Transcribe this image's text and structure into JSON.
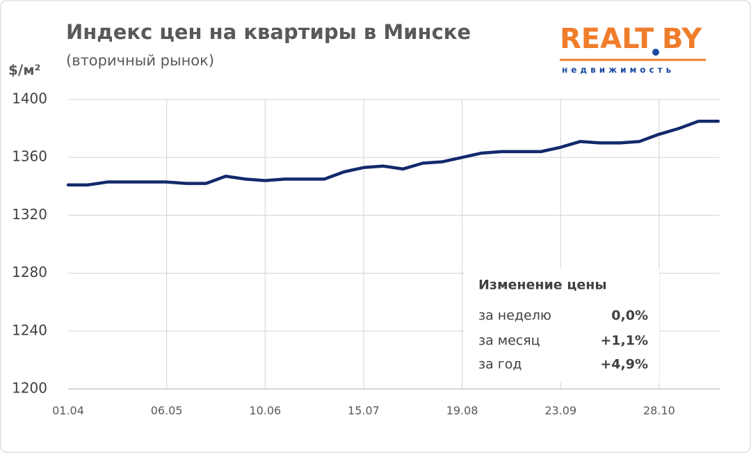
{
  "chart_data": {
    "type": "line",
    "title": "Индекс цен на квартиры в Минске",
    "subtitle": "(вторичный рынок)",
    "y_label": "$/м²",
    "logo": {
      "name_left": "REALT",
      "name_right": "BY",
      "tagline": "недвижимость"
    },
    "categories": [
      "01.04",
      null,
      null,
      null,
      null,
      "06.05",
      null,
      null,
      null,
      null,
      "10.06",
      null,
      null,
      null,
      null,
      "15.07",
      null,
      null,
      null,
      null,
      "19.08",
      null,
      null,
      null,
      null,
      "23.09",
      null,
      null,
      null,
      null,
      "28.10",
      null,
      null,
      null
    ],
    "series": [
      {
        "name": "Индекс цен",
        "color": "#13296b",
        "values": [
          1341,
          1341,
          1343,
          1343,
          1343,
          1343,
          1342,
          1342,
          1347,
          1345,
          1344,
          1345,
          1345,
          1345,
          1350,
          1353,
          1354,
          1352,
          1356,
          1357,
          1360,
          1363,
          1364,
          1364,
          1364,
          1367,
          1371,
          1370,
          1370,
          1371,
          1376,
          1380,
          1385,
          1385
        ]
      }
    ],
    "ylim": [
      1200,
      1400
    ],
    "yticks": [
      1200,
      1240,
      1280,
      1320,
      1360,
      1400
    ],
    "grid": true,
    "change_box": {
      "title": "Изменение цены",
      "rows": [
        [
          "за неделю",
          "0,0%"
        ],
        [
          "за месяц",
          "+1,1%"
        ],
        [
          "за год",
          "+4,9%"
        ]
      ]
    }
  }
}
